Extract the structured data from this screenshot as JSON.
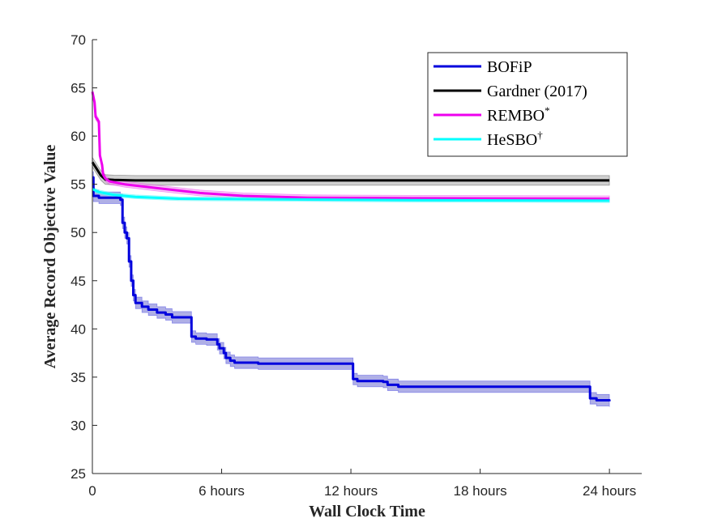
{
  "chart_data": {
    "type": "line",
    "xlabel": "Wall Clock Time",
    "ylabel": "Average Record Objective Value",
    "xlim": [
      0,
      25.5
    ],
    "ylim": [
      25,
      70
    ],
    "x_ticks": [
      {
        "value": 0,
        "label": "0"
      },
      {
        "value": 6,
        "label": "6 hours"
      },
      {
        "value": 12,
        "label": "12 hours"
      },
      {
        "value": 18,
        "label": "18 hours"
      },
      {
        "value": 24,
        "label": "24 hours"
      }
    ],
    "y_ticks": [
      25,
      30,
      35,
      40,
      45,
      50,
      55,
      60,
      65,
      70
    ],
    "grid": false,
    "legend_position": "top-right",
    "series": [
      {
        "name": "BOFiP",
        "color": "#0000dd",
        "band_color": "#7a7ad6",
        "step": true,
        "points": [
          [
            0,
            55.7
          ],
          [
            0.05,
            53.8
          ],
          [
            0.3,
            53.6
          ],
          [
            1.3,
            53.4
          ],
          [
            1.4,
            51
          ],
          [
            1.5,
            50
          ],
          [
            1.6,
            49.4
          ],
          [
            1.7,
            47
          ],
          [
            1.8,
            45
          ],
          [
            1.9,
            43.5
          ],
          [
            2.0,
            42.7
          ],
          [
            2.3,
            42.3
          ],
          [
            2.6,
            42.0
          ],
          [
            3.0,
            41.7
          ],
          [
            3.4,
            41.5
          ],
          [
            3.7,
            41.2
          ],
          [
            4.5,
            41.2
          ],
          [
            4.6,
            39.2
          ],
          [
            4.8,
            39.0
          ],
          [
            5.3,
            38.9
          ],
          [
            5.7,
            38.9
          ],
          [
            5.8,
            38.4
          ],
          [
            5.9,
            38.0
          ],
          [
            6.1,
            37.5
          ],
          [
            6.2,
            37.0
          ],
          [
            6.4,
            36.7
          ],
          [
            6.6,
            36.5
          ],
          [
            7.5,
            36.5
          ],
          [
            7.7,
            36.4
          ],
          [
            12.0,
            36.4
          ],
          [
            12.1,
            34.8
          ],
          [
            12.3,
            34.6
          ],
          [
            13.5,
            34.5
          ],
          [
            13.7,
            34.2
          ],
          [
            14.2,
            34.0
          ],
          [
            23.0,
            34.0
          ],
          [
            23.1,
            32.8
          ],
          [
            23.4,
            32.6
          ],
          [
            24.0,
            32.5
          ]
        ]
      },
      {
        "name": "Gardner (2017)",
        "color": "#000000",
        "band_color": "#b0b0b0",
        "step": false,
        "points": [
          [
            0,
            57.3
          ],
          [
            0.2,
            56.6
          ],
          [
            0.4,
            55.9
          ],
          [
            0.6,
            55.5
          ],
          [
            1.0,
            55.45
          ],
          [
            2.0,
            55.4
          ],
          [
            24.0,
            55.4
          ]
        ]
      },
      {
        "name": "REMBO*",
        "color": "#ee00ee",
        "band_color": "#f2a0f2",
        "step": false,
        "points": [
          [
            0,
            64.6
          ],
          [
            0.1,
            63.5
          ],
          [
            0.15,
            62.0
          ],
          [
            0.3,
            61.5
          ],
          [
            0.35,
            58.0
          ],
          [
            0.45,
            57.0
          ],
          [
            0.5,
            56.0
          ],
          [
            0.6,
            55.6
          ],
          [
            0.8,
            55.3
          ],
          [
            1.5,
            55.0
          ],
          [
            3.0,
            54.6
          ],
          [
            5.0,
            54.1
          ],
          [
            7.0,
            53.8
          ],
          [
            10.0,
            53.6
          ],
          [
            15.0,
            53.55
          ],
          [
            24.0,
            53.5
          ]
        ]
      },
      {
        "name": "HeSBO†",
        "color": "#00ffff",
        "band_color": "#a0f5f5",
        "step": false,
        "points": [
          [
            0,
            54.5
          ],
          [
            0.3,
            54.2
          ],
          [
            1.0,
            53.9
          ],
          [
            2.0,
            53.7
          ],
          [
            4.0,
            53.5
          ],
          [
            8.0,
            53.45
          ],
          [
            15.0,
            53.35
          ],
          [
            24.0,
            53.3
          ]
        ]
      }
    ]
  },
  "legend": {
    "items": [
      {
        "base": "BOFiP",
        "sup": ""
      },
      {
        "base": "Gardner (2017)",
        "sup": ""
      },
      {
        "base": "REMBO",
        "sup": "*"
      },
      {
        "base": "HeSBO",
        "sup": "†"
      }
    ]
  }
}
